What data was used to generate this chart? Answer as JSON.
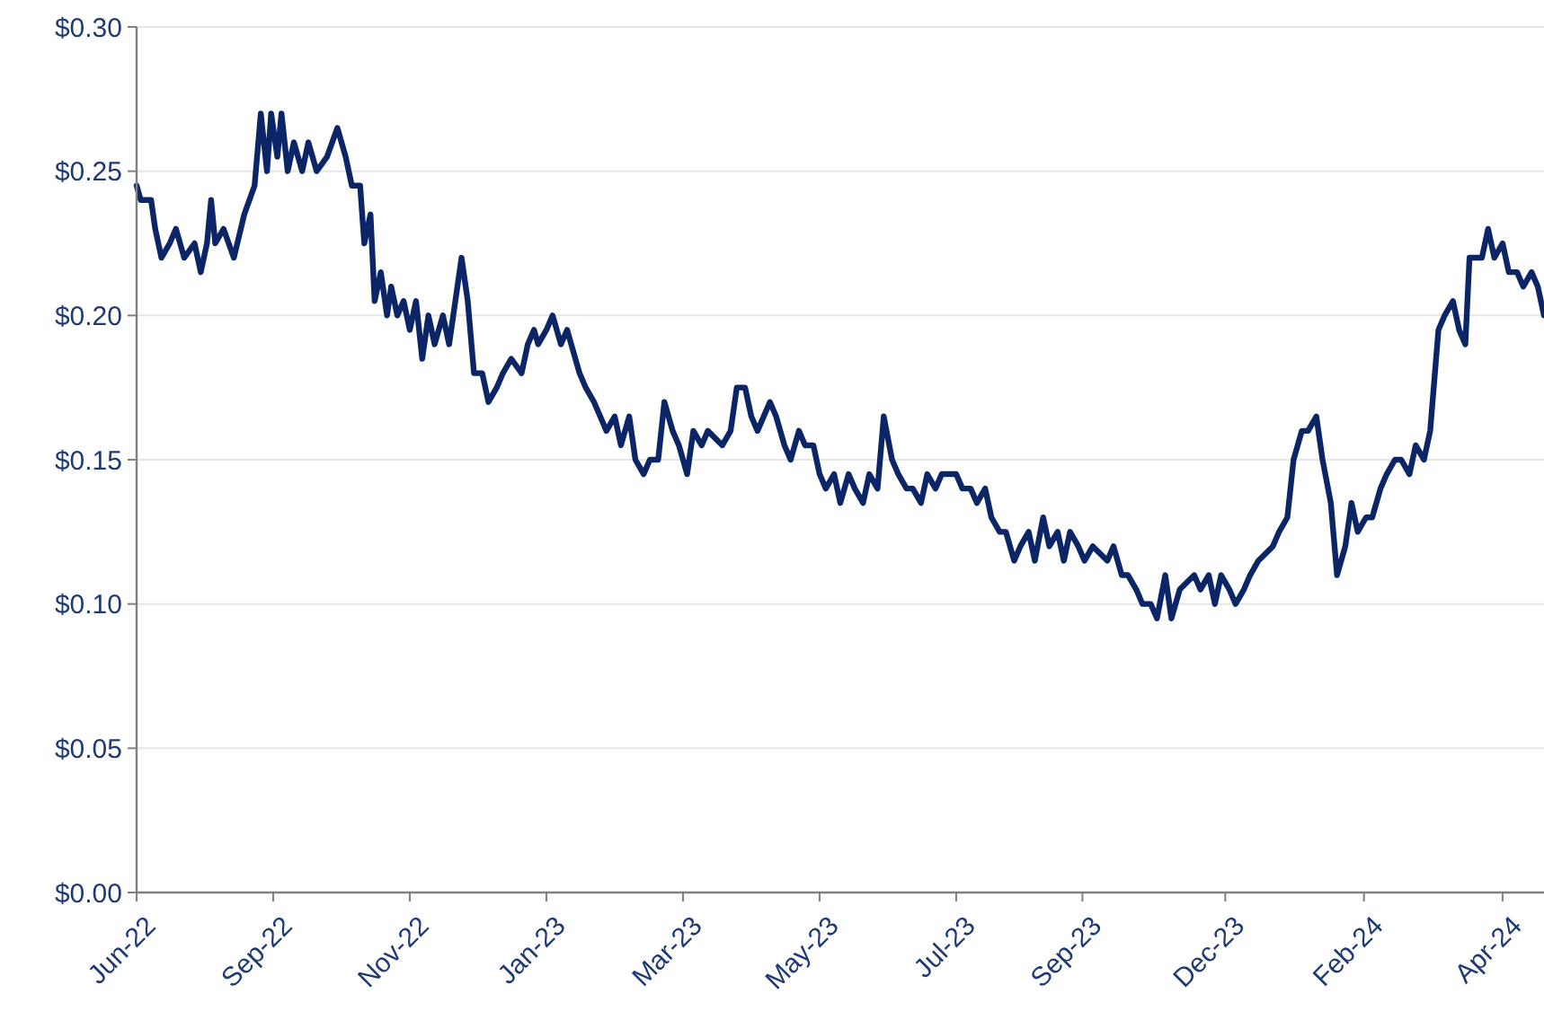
{
  "chart_data": {
    "type": "line",
    "xlim": [
      "2022-06-30",
      "2024-05-10"
    ],
    "xticks": [
      {
        "value": "2022-06-30",
        "label": "Jun-22"
      },
      {
        "value": "2022-09-04",
        "label": "Sep-22"
      },
      {
        "value": "2022-11-09",
        "label": "Nov-22"
      },
      {
        "value": "2023-01-14",
        "label": "Jan-23"
      },
      {
        "value": "2023-03-21",
        "label": "Mar-23"
      },
      {
        "value": "2023-05-26",
        "label": "May-23"
      },
      {
        "value": "2023-07-31",
        "label": "Jul-23"
      },
      {
        "value": "2023-09-30",
        "label": "Sep-23"
      },
      {
        "value": "2023-12-08",
        "label": "Dec-23"
      },
      {
        "value": "2024-02-13",
        "label": "Feb-24"
      },
      {
        "value": "2024-04-20",
        "label": "Apr-24"
      }
    ],
    "ylim": [
      0,
      0.3
    ],
    "yticks": [
      {
        "value": 0,
        "label": "$0.00"
      },
      {
        "value": 0.05,
        "label": "$0.05"
      },
      {
        "value": 0.1,
        "label": "$0.10"
      },
      {
        "value": 0.15,
        "label": "$0.15"
      },
      {
        "value": 0.2,
        "label": "$0.20"
      },
      {
        "value": 0.25,
        "label": "$0.25"
      },
      {
        "value": 0.3,
        "label": "$0.30"
      }
    ],
    "grid": "y",
    "marker": "none",
    "line_style": "solid",
    "x": [
      "2022-06-30",
      "2022-07-02",
      "2022-07-07",
      "2022-07-09",
      "2022-07-12",
      "2022-07-16",
      "2022-07-19",
      "2022-07-23",
      "2022-07-28",
      "2022-07-31",
      "2022-08-03",
      "2022-08-05",
      "2022-08-07",
      "2022-08-11",
      "2022-08-16",
      "2022-08-21",
      "2022-08-26",
      "2022-08-29",
      "2022-09-01",
      "2022-09-03",
      "2022-09-06",
      "2022-09-08",
      "2022-09-11",
      "2022-09-14",
      "2022-09-18",
      "2022-09-21",
      "2022-09-25",
      "2022-09-30",
      "2022-10-05",
      "2022-10-09",
      "2022-10-12",
      "2022-10-16",
      "2022-10-18",
      "2022-10-21",
      "2022-10-23",
      "2022-10-26",
      "2022-10-29",
      "2022-10-31",
      "2022-11-03",
      "2022-11-06",
      "2022-11-09",
      "2022-11-12",
      "2022-11-15",
      "2022-11-18",
      "2022-11-21",
      "2022-11-25",
      "2022-11-28",
      "2022-12-02",
      "2022-12-04",
      "2022-12-07",
      "2022-12-10",
      "2022-12-14",
      "2022-12-17",
      "2022-12-21",
      "2022-12-24",
      "2022-12-28",
      "2023-01-02",
      "2023-01-05",
      "2023-01-08",
      "2023-01-10",
      "2023-01-14",
      "2023-01-17",
      "2023-01-21",
      "2023-01-24",
      "2023-01-30",
      "2023-02-02",
      "2023-02-06",
      "2023-02-09",
      "2023-02-12",
      "2023-02-16",
      "2023-02-19",
      "2023-02-23",
      "2023-02-26",
      "2023-03-02",
      "2023-03-05",
      "2023-03-09",
      "2023-03-12",
      "2023-03-16",
      "2023-03-19",
      "2023-03-23",
      "2023-03-26",
      "2023-03-30",
      "2023-04-02",
      "2023-04-09",
      "2023-04-13",
      "2023-04-16",
      "2023-04-20",
      "2023-04-23",
      "2023-04-26",
      "2023-05-02",
      "2023-05-05",
      "2023-05-09",
      "2023-05-12",
      "2023-05-16",
      "2023-05-19",
      "2023-05-23",
      "2023-05-26",
      "2023-05-29",
      "2023-06-02",
      "2023-06-05",
      "2023-06-09",
      "2023-06-12",
      "2023-06-16",
      "2023-06-19",
      "2023-06-23",
      "2023-06-26",
      "2023-06-30",
      "2023-07-03",
      "2023-07-07",
      "2023-07-10",
      "2023-07-14",
      "2023-07-17",
      "2023-07-21",
      "2023-07-24",
      "2023-07-31",
      "2023-08-03",
      "2023-08-07",
      "2023-08-10",
      "2023-08-14",
      "2023-08-17",
      "2023-08-21",
      "2023-08-24",
      "2023-08-28",
      "2023-08-31",
      "2023-09-04",
      "2023-09-07",
      "2023-09-11",
      "2023-09-14",
      "2023-09-18",
      "2023-09-21",
      "2023-09-24",
      "2023-09-28",
      "2023-10-01",
      "2023-10-05",
      "2023-10-12",
      "2023-10-15",
      "2023-10-19",
      "2023-10-22",
      "2023-10-26",
      "2023-10-29",
      "2023-11-02",
      "2023-11-05",
      "2023-11-09",
      "2023-11-12",
      "2023-11-16",
      "2023-11-23",
      "2023-11-26",
      "2023-11-30",
      "2023-12-03",
      "2023-12-06",
      "2023-12-10",
      "2023-12-13",
      "2023-12-17",
      "2023-12-20",
      "2023-12-24",
      "2023-12-31",
      "2024-01-03",
      "2024-01-07",
      "2024-01-10",
      "2024-01-14",
      "2024-01-17",
      "2024-01-21",
      "2024-01-24",
      "2024-01-28",
      "2024-01-31",
      "2024-02-04",
      "2024-02-07",
      "2024-02-10",
      "2024-02-14",
      "2024-02-17",
      "2024-02-21",
      "2024-02-24",
      "2024-02-28",
      "2024-03-02",
      "2024-03-06",
      "2024-03-09",
      "2024-03-13",
      "2024-03-16",
      "2024-03-20",
      "2024-03-23",
      "2024-03-27",
      "2024-03-30",
      "2024-04-02",
      "2024-04-04",
      "2024-04-10",
      "2024-04-13",
      "2024-04-16",
      "2024-04-20",
      "2024-04-23",
      "2024-04-27",
      "2024-04-30",
      "2024-05-04",
      "2024-05-07",
      "2024-05-10"
    ],
    "series": [
      {
        "color": "#0b2566",
        "values": [
          0.245,
          0.24,
          0.24,
          0.23,
          0.22,
          0.225,
          0.23,
          0.22,
          0.225,
          0.215,
          0.225,
          0.24,
          0.225,
          0.23,
          0.22,
          0.235,
          0.245,
          0.27,
          0.25,
          0.27,
          0.255,
          0.27,
          0.25,
          0.26,
          0.25,
          0.26,
          0.25,
          0.255,
          0.265,
          0.255,
          0.245,
          0.245,
          0.225,
          0.235,
          0.205,
          0.215,
          0.2,
          0.21,
          0.2,
          0.205,
          0.195,
          0.205,
          0.185,
          0.2,
          0.19,
          0.2,
          0.19,
          0.21,
          0.22,
          0.205,
          0.18,
          0.18,
          0.17,
          0.175,
          0.18,
          0.185,
          0.18,
          0.19,
          0.195,
          0.19,
          0.195,
          0.2,
          0.19,
          0.195,
          0.18,
          0.175,
          0.17,
          0.165,
          0.16,
          0.165,
          0.155,
          0.165,
          0.15,
          0.145,
          0.15,
          0.15,
          0.17,
          0.16,
          0.155,
          0.145,
          0.16,
          0.155,
          0.16,
          0.155,
          0.16,
          0.175,
          0.175,
          0.165,
          0.16,
          0.17,
          0.165,
          0.155,
          0.15,
          0.16,
          0.155,
          0.155,
          0.145,
          0.14,
          0.145,
          0.135,
          0.145,
          0.14,
          0.135,
          0.145,
          0.14,
          0.165,
          0.15,
          0.145,
          0.14,
          0.14,
          0.135,
          0.145,
          0.14,
          0.145,
          0.145,
          0.14,
          0.14,
          0.135,
          0.14,
          0.13,
          0.125,
          0.125,
          0.115,
          0.12,
          0.125,
          0.115,
          0.13,
          0.12,
          0.125,
          0.115,
          0.125,
          0.12,
          0.115,
          0.12,
          0.115,
          0.12,
          0.11,
          0.11,
          0.105,
          0.1,
          0.1,
          0.095,
          0.11,
          0.095,
          0.105,
          0.11,
          0.105,
          0.11,
          0.1,
          0.11,
          0.105,
          0.1,
          0.105,
          0.11,
          0.115,
          0.12,
          0.125,
          0.13,
          0.15,
          0.16,
          0.16,
          0.165,
          0.15,
          0.135,
          0.11,
          0.12,
          0.135,
          0.125,
          0.13,
          0.13,
          0.14,
          0.145,
          0.15,
          0.15,
          0.145,
          0.155,
          0.15,
          0.16,
          0.195,
          0.2,
          0.205,
          0.195,
          0.19,
          0.22,
          0.22,
          0.23,
          0.22,
          0.225,
          0.215,
          0.215,
          0.21,
          0.215,
          0.21,
          0.2
        ]
      }
    ]
  }
}
